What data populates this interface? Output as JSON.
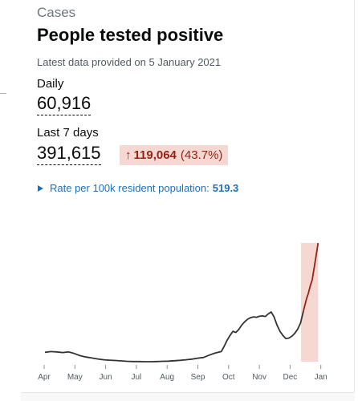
{
  "card": {
    "category": "Cases",
    "title": "People tested positive",
    "latest": "Latest data provided on 5 January 2021",
    "daily": {
      "label": "Daily",
      "value": "60,916"
    },
    "last7": {
      "label": "Last 7 days",
      "value": "391,615",
      "change_value": "119,064",
      "change_pct": "(43.7%)"
    },
    "rate": {
      "label": "Rate per 100k resident population:",
      "value": "519.3"
    },
    "colors": {
      "line": "#333333",
      "recent_line": "#942514",
      "recent_fill": "#f6d7d2",
      "badge_bg": "#f6d7d2",
      "badge_text": "#942514",
      "link": "#1d70b8"
    }
  },
  "chart_data": {
    "type": "line",
    "title": "",
    "xlabel": "",
    "ylabel": "",
    "ylim": [
      0,
      64000
    ],
    "grid": false,
    "x_ticks": [
      "Apr",
      "May",
      "Jun",
      "Jul",
      "Aug",
      "Sep",
      "Oct",
      "Nov",
      "Dec",
      "Jan"
    ],
    "x_range": [
      0,
      282
    ],
    "series": [
      {
        "name": "",
        "x": [
          0,
          6,
          12,
          18,
          24,
          30,
          36,
          42,
          48,
          54,
          60,
          66,
          72,
          78,
          84,
          90,
          96,
          102,
          108,
          114,
          120,
          126,
          132,
          138,
          144,
          150,
          156,
          162,
          168,
          174,
          180,
          183,
          186,
          189,
          192,
          195,
          198,
          201,
          204,
          207,
          210,
          213,
          216,
          219,
          222,
          225,
          228,
          231,
          234,
          237,
          240,
          243,
          246,
          249,
          252,
          255,
          258,
          261,
          264,
          267,
          269,
          271,
          273,
          275,
          277,
          279
        ],
        "y": [
          4800,
          5200,
          5000,
          4700,
          5000,
          4200,
          3100,
          2400,
          1900,
          1400,
          1000,
          800,
          600,
          400,
          200,
          100,
          100,
          0,
          0,
          100,
          200,
          300,
          500,
          700,
          1000,
          1300,
          1800,
          2200,
          3400,
          4500,
          5200,
          7800,
          11000,
          13500,
          15600,
          15000,
          16600,
          18800,
          20500,
          21800,
          22600,
          23000,
          22800,
          23300,
          23500,
          23200,
          24500,
          25500,
          23000,
          18800,
          15600,
          13500,
          11900,
          12100,
          13000,
          14500,
          16600,
          19800,
          26000,
          32000,
          35000,
          39000,
          42000,
          48500,
          54600,
          60900
        ]
      }
    ],
    "highlight_from_x": 264
  }
}
